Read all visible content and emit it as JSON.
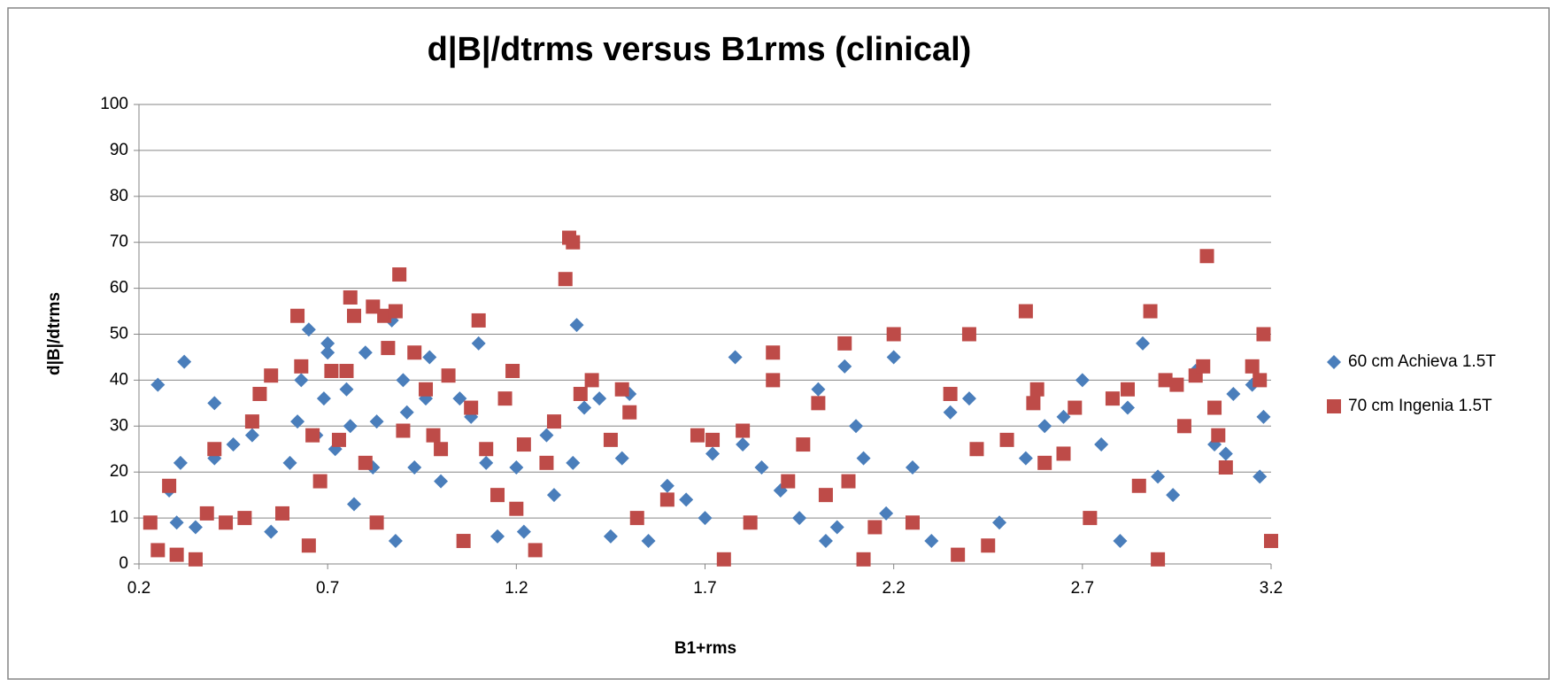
{
  "chart_data": {
    "type": "scatter",
    "title": "d|B|/dtrms versus B1rms (clinical)",
    "x_label": "B1+rms",
    "y_label": "d|B|/dtrms",
    "xlim": [
      0.2,
      3.2
    ],
    "xticks": [
      0.2,
      0.7,
      1.2,
      1.7,
      2.2,
      2.7,
      3.2
    ],
    "ylim": [
      0,
      100
    ],
    "yticks": [
      0,
      10,
      20,
      30,
      40,
      50,
      60,
      70,
      80,
      90,
      100
    ],
    "grid": true,
    "legend": "right",
    "series": [
      {
        "name": "60 cm Achieva 1.5T",
        "color": "#4a7ebb",
        "marker": "diamond",
        "x": [
          0.25,
          0.28,
          0.3,
          0.32,
          0.31,
          0.35,
          0.4,
          0.4,
          0.45,
          0.5,
          0.55,
          0.6,
          0.62,
          0.63,
          0.65,
          0.67,
          0.69,
          0.7,
          0.7,
          0.72,
          0.75,
          0.76,
          0.77,
          0.8,
          0.82,
          0.83,
          0.87,
          0.88,
          0.9,
          0.91,
          0.93,
          0.96,
          0.97,
          1.0,
          1.05,
          1.08,
          1.1,
          1.12,
          1.15,
          1.2,
          1.22,
          1.28,
          1.3,
          1.35,
          1.36,
          1.38,
          1.42,
          1.45,
          1.48,
          1.5,
          1.55,
          1.6,
          1.65,
          1.7,
          1.72,
          1.78,
          1.8,
          1.82,
          1.85,
          1.9,
          1.95,
          2.0,
          2.02,
          2.05,
          2.07,
          2.1,
          2.12,
          2.18,
          2.2,
          2.25,
          2.3,
          2.35,
          2.4,
          2.42,
          2.48,
          2.55,
          2.6,
          2.65,
          2.7,
          2.75,
          2.8,
          2.82,
          2.86,
          2.9,
          2.94,
          3.0,
          3.05,
          3.08,
          3.1,
          3.15,
          3.18,
          3.17
        ],
        "values": [
          39,
          16,
          9,
          44,
          22,
          8,
          35,
          23,
          26,
          28,
          7,
          22,
          31,
          40,
          51,
          28,
          36,
          48,
          46,
          25,
          38,
          30,
          13,
          46,
          21,
          31,
          53,
          5,
          40,
          33,
          21,
          36,
          45,
          18,
          36,
          32,
          48,
          22,
          6,
          21,
          7,
          28,
          15,
          22,
          52,
          34,
          36,
          6,
          23,
          37,
          5,
          17,
          14,
          10,
          24,
          45,
          26,
          9,
          21,
          16,
          10,
          38,
          5,
          8,
          43,
          30,
          23,
          11,
          45,
          21,
          5,
          33,
          36,
          25,
          9,
          23,
          30,
          32,
          40,
          26,
          5,
          34,
          48,
          19,
          15,
          42,
          26,
          24,
          37,
          39,
          32,
          19
        ]
      },
      {
        "name": "70 cm Ingenia 1.5T",
        "color": "#be4b48",
        "marker": "square",
        "x": [
          0.23,
          0.25,
          0.28,
          0.3,
          0.35,
          0.38,
          0.4,
          0.43,
          0.48,
          0.5,
          0.52,
          0.55,
          0.58,
          0.62,
          0.63,
          0.65,
          0.66,
          0.68,
          0.71,
          0.73,
          0.75,
          0.76,
          0.77,
          0.8,
          0.82,
          0.83,
          0.85,
          0.86,
          0.88,
          0.89,
          0.9,
          0.93,
          0.96,
          0.98,
          1.0,
          1.02,
          1.06,
          1.08,
          1.1,
          1.12,
          1.15,
          1.17,
          1.19,
          1.2,
          1.22,
          1.25,
          1.28,
          1.3,
          1.33,
          1.34,
          1.35,
          1.37,
          1.4,
          1.45,
          1.48,
          1.5,
          1.52,
          1.6,
          1.68,
          1.72,
          1.75,
          1.8,
          1.82,
          1.88,
          1.88,
          1.92,
          1.96,
          2.0,
          2.02,
          2.07,
          2.08,
          2.12,
          2.15,
          2.2,
          2.25,
          2.35,
          2.37,
          2.4,
          2.42,
          2.45,
          2.5,
          2.55,
          2.57,
          2.58,
          2.6,
          2.65,
          2.68,
          2.72,
          2.78,
          2.82,
          2.85,
          2.88,
          2.9,
          2.92,
          2.95,
          2.97,
          3.0,
          3.02,
          3.03,
          3.05,
          3.06,
          3.08,
          3.15,
          3.18,
          3.17,
          3.2
        ],
        "values": [
          9,
          3,
          17,
          2,
          1,
          11,
          25,
          9,
          10,
          31,
          37,
          41,
          11,
          54,
          43,
          4,
          28,
          18,
          42,
          27,
          42,
          58,
          54,
          22,
          56,
          9,
          54,
          47,
          55,
          63,
          29,
          46,
          38,
          28,
          25,
          41,
          5,
          34,
          53,
          25,
          15,
          36,
          42,
          12,
          26,
          3,
          22,
          31,
          62,
          71,
          70,
          37,
          40,
          27,
          38,
          33,
          10,
          14,
          28,
          27,
          1,
          29,
          9,
          46,
          40,
          18,
          26,
          35,
          15,
          48,
          18,
          1,
          8,
          50,
          9,
          37,
          2,
          50,
          25,
          4,
          27,
          55,
          35,
          38,
          22,
          24,
          34,
          10,
          36,
          38,
          17,
          55,
          1,
          40,
          39,
          30,
          41,
          43,
          67,
          34,
          28,
          21,
          43,
          50,
          40,
          5
        ]
      }
    ]
  }
}
